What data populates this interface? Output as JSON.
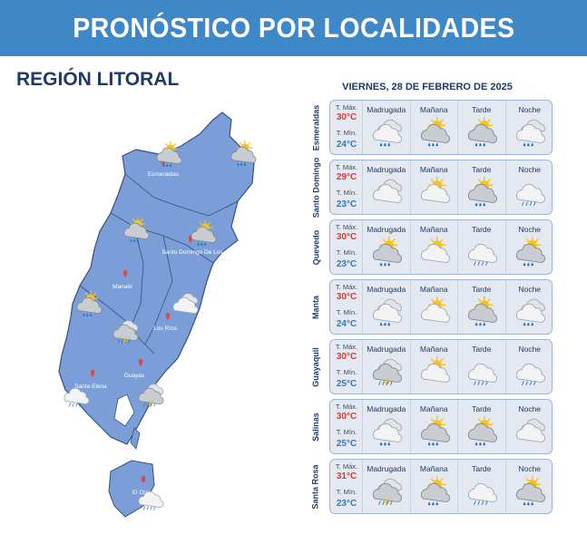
{
  "header": {
    "title": "PRONÓSTICO POR LOCALIDADES"
  },
  "region": {
    "title": "REGIÓN LITORAL"
  },
  "date": "VIERNES, 28 DE FEBRERO DE 2025",
  "labels": {
    "tmax": "T. Máx.",
    "tmin": "T. Mín.",
    "periods": [
      "Madrugada",
      "Mañana",
      "Tarde",
      "Noche"
    ]
  },
  "map": {
    "cities": [
      "Esmeraldas",
      "Santo Domingo De Los",
      "Manabí",
      "Los Ríos",
      "Guayas",
      "Santa Elena",
      "El Oro"
    ]
  },
  "locations": [
    {
      "name": "Esmeraldas",
      "tmax": "30°C",
      "tmin": "24°C",
      "icons": [
        "cloudy-rain-icon",
        "partly-cloudy-rain-icon",
        "partly-cloudy-rain-icon",
        "cloudy-rain-icon"
      ]
    },
    {
      "name": "Santo Domingo",
      "tmax": "29°C",
      "tmin": "23°C",
      "icons": [
        "cloudy-icon",
        "partly-cloudy-icon",
        "partly-cloudy-rain-icon",
        "cloud-rain-icon"
      ]
    },
    {
      "name": "Quevedo",
      "tmax": "30°C",
      "tmin": "23°C",
      "icons": [
        "partly-cloudy-rain-icon",
        "partly-cloudy-icon",
        "cloud-rain-icon",
        "partly-cloudy-rain-icon"
      ]
    },
    {
      "name": "Manta",
      "tmax": "30°C",
      "tmin": "24°C",
      "icons": [
        "cloudy-rain-icon",
        "partly-cloudy-icon",
        "partly-cloudy-rain-icon",
        "cloudy-rain-icon"
      ]
    },
    {
      "name": "Guayaquil",
      "tmax": "30°C",
      "tmin": "25°C",
      "icons": [
        "thunderstorm-icon",
        "partly-cloudy-icon",
        "cloud-rain-icon",
        "cloud-rain-icon"
      ]
    },
    {
      "name": "Salinas",
      "tmax": "30°C",
      "tmin": "25°C",
      "icons": [
        "cloudy-rain-icon",
        "partly-cloudy-rain-icon",
        "partly-cloudy-rain-icon",
        "cloudy-icon"
      ]
    },
    {
      "name": "Santa Rosa",
      "tmax": "31°C",
      "tmin": "23°C",
      "icons": [
        "thunderstorm-icon",
        "partly-cloudy-rain-icon",
        "cloud-rain-icon",
        "partly-cloudy-rain-icon"
      ]
    }
  ]
}
